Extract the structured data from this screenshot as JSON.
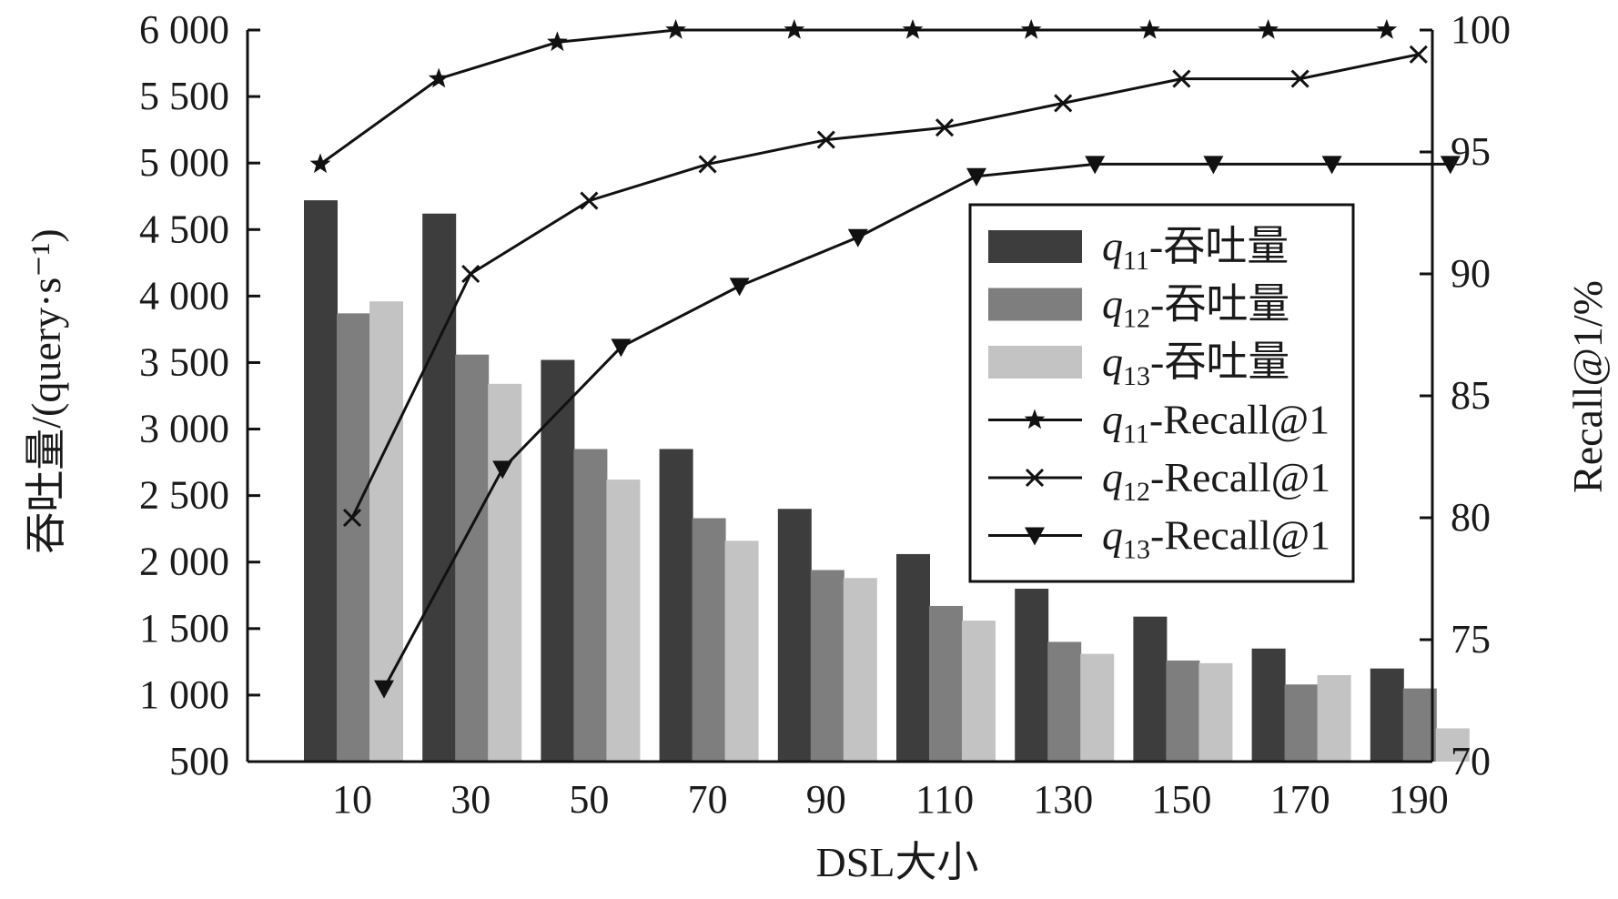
{
  "chart_data": {
    "type": "bar",
    "categories": [
      "10",
      "30",
      "50",
      "70",
      "90",
      "110",
      "130",
      "150",
      "170",
      "190"
    ],
    "xlabel": "DSL大小",
    "ylabel_left": "吞吐量/(query·s⁻¹)",
    "ylabel_right": "Recall@1/%",
    "ylim_left": [
      500,
      6000
    ],
    "ylim_right": [
      70,
      100
    ],
    "yticks_left": [
      "500",
      "1 000",
      "1 500",
      "2 000",
      "2 500",
      "3 000",
      "3 500",
      "4 000",
      "4 500",
      "5 000",
      "5 500",
      "6 000"
    ],
    "yticks_right": [
      "70",
      "75",
      "80",
      "85",
      "90",
      "95",
      "100"
    ],
    "grid": false,
    "legend_position": "right",
    "bar_series": [
      {
        "name": "q11-吞吐量",
        "legend_var": "q",
        "legend_sub": "11",
        "legend_text": "-吞吐量",
        "color": "#3d3d3d",
        "values": [
          4720,
          4620,
          3520,
          2850,
          2400,
          2060,
          1800,
          1590,
          1350,
          1200
        ]
      },
      {
        "name": "q12-吞吐量",
        "legend_var": "q",
        "legend_sub": "12",
        "legend_text": "-吞吐量",
        "color": "#7e7e7e",
        "values": [
          3870,
          3560,
          2850,
          2330,
          1940,
          1670,
          1400,
          1260,
          1080,
          1050
        ]
      },
      {
        "name": "q13-吞吐量",
        "legend_var": "q",
        "legend_sub": "13",
        "legend_text": "-吞吐量",
        "color": "#c3c3c3",
        "values": [
          3960,
          3340,
          2620,
          2160,
          1880,
          1560,
          1310,
          1240,
          1150,
          750
        ]
      }
    ],
    "line_series": [
      {
        "name": "q11-Recall@1",
        "legend_var": "q",
        "legend_sub": "11",
        "legend_text": "-Recall@1",
        "marker": "star",
        "values": [
          94.5,
          98.0,
          99.5,
          100,
          100,
          100,
          100,
          100,
          100,
          100
        ]
      },
      {
        "name": "q12-Recall@1",
        "legend_var": "q",
        "legend_sub": "12",
        "legend_text": "-Recall@1",
        "marker": "x",
        "values": [
          80.0,
          90.0,
          93.0,
          94.5,
          95.5,
          96.0,
          97.0,
          98.0,
          98.0,
          99.0
        ]
      },
      {
        "name": "q13-Recall@1",
        "legend_var": "q",
        "legend_sub": "13",
        "legend_text": "-Recall@1",
        "marker": "triangle-down",
        "values": [
          73.0,
          82.0,
          87.0,
          89.5,
          91.5,
          94.0,
          94.5,
          94.5,
          94.5,
          94.5
        ]
      }
    ]
  }
}
